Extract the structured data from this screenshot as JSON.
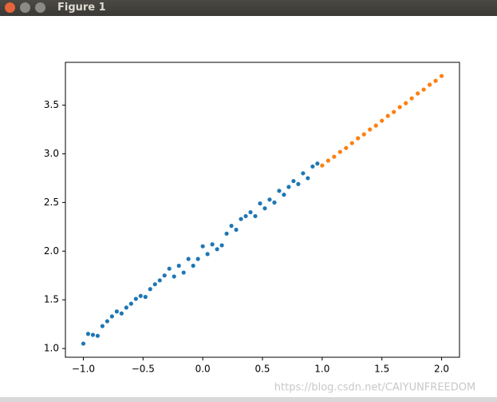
{
  "window": {
    "title": "Figure 1"
  },
  "watermark": "https://blog.csdn.net/CAIYUNFREEDOM",
  "chart_data": {
    "type": "scatter",
    "xlim": [
      -1.15,
      2.15
    ],
    "ylim": [
      0.91,
      3.94
    ],
    "xticks": [
      {
        "value": -1,
        "label": "−1.0"
      },
      {
        "value": -0.5,
        "label": "−0.5"
      },
      {
        "value": 0,
        "label": "0.0"
      },
      0.5,
      {
        "value": 1,
        "label": "1.0"
      },
      1.5,
      {
        "value": 2,
        "label": "2.0"
      }
    ],
    "yticks": [
      {
        "value": 1,
        "label": "1.0"
      },
      1.5,
      {
        "value": 2,
        "label": "2.0"
      },
      2.5,
      {
        "value": 3,
        "label": "3.0"
      },
      3.5
    ],
    "series": [
      {
        "color": "#1f77b4",
        "x": [
          -1.0,
          -0.96,
          -0.92,
          -0.88,
          -0.84,
          -0.8,
          -0.76,
          -0.72,
          -0.68,
          -0.64,
          -0.6,
          -0.56,
          -0.52,
          -0.48,
          -0.44,
          -0.4,
          -0.36,
          -0.32,
          -0.28,
          -0.24,
          -0.2,
          -0.16,
          -0.12,
          -0.08,
          -0.04,
          0.0,
          0.04,
          0.08,
          0.12,
          0.16,
          0.2,
          0.24,
          0.28,
          0.32,
          0.36,
          0.4,
          0.44,
          0.48,
          0.52,
          0.56,
          0.6,
          0.64,
          0.68,
          0.72,
          0.76,
          0.8,
          0.84,
          0.88,
          0.92,
          0.96
        ],
        "values": [
          1.05,
          1.15,
          1.14,
          1.13,
          1.23,
          1.28,
          1.33,
          1.38,
          1.36,
          1.42,
          1.46,
          1.51,
          1.54,
          1.53,
          1.61,
          1.66,
          1.7,
          1.75,
          1.82,
          1.74,
          1.85,
          1.78,
          1.92,
          1.85,
          1.92,
          2.05,
          1.97,
          2.07,
          2.02,
          2.06,
          2.18,
          2.26,
          2.22,
          2.33,
          2.36,
          2.4,
          2.36,
          2.49,
          2.44,
          2.53,
          2.5,
          2.62,
          2.58,
          2.66,
          2.72,
          2.69,
          2.8,
          2.75,
          2.87,
          2.9
        ]
      },
      {
        "color": "#ff7f0e",
        "x": [
          1.0,
          1.05,
          1.1,
          1.15,
          1.2,
          1.25,
          1.3,
          1.35,
          1.4,
          1.45,
          1.5,
          1.55,
          1.6,
          1.65,
          1.7,
          1.75,
          1.8,
          1.85,
          1.9,
          1.95,
          2.0
        ],
        "values": [
          2.88,
          2.93,
          2.97,
          3.02,
          3.06,
          3.11,
          3.16,
          3.2,
          3.25,
          3.29,
          3.34,
          3.39,
          3.43,
          3.48,
          3.52,
          3.57,
          3.62,
          3.66,
          3.71,
          3.75,
          3.8
        ]
      }
    ]
  }
}
